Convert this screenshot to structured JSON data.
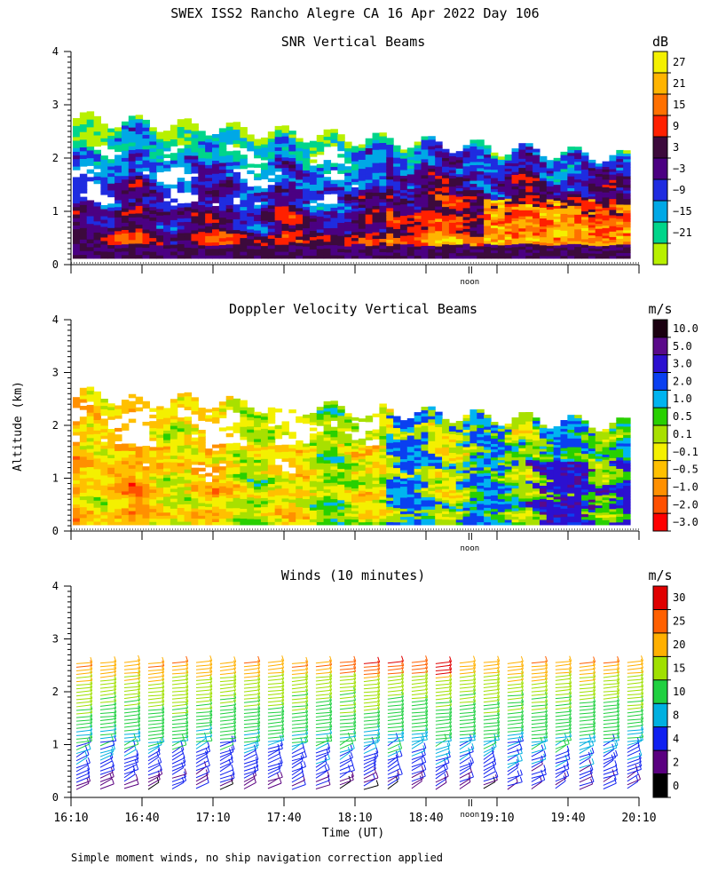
{
  "title": "SWEX ISS2 Rancho Alegre CA  16 Apr 2022 Day 106",
  "ylabel": "Altitude (km)",
  "xlabel": "Time (UT)",
  "footnote": "Simple moment winds, no ship navigation correction applied",
  "noon_label": "noon",
  "x_ticks": [
    "16:10",
    "16:40",
    "17:10",
    "17:40",
    "18:10",
    "18:40",
    "19:10",
    "19:40",
    "20:10"
  ],
  "y_ticks": [
    "0",
    "1",
    "2",
    "3",
    "4"
  ],
  "chart_data": [
    {
      "type": "heatmap",
      "title": "SNR Vertical Beams",
      "unit": "dB",
      "xlabel": "",
      "ylabel": "Altitude (km)",
      "x_range": [
        "16:10",
        "20:10"
      ],
      "ylim": [
        0,
        4
      ],
      "colorbar_ticks": [
        "27",
        "21",
        "15",
        "9",
        "3",
        "−3",
        "−9",
        "−15",
        "−21"
      ],
      "colorbar_colors": [
        "#f4f000",
        "#ffb400",
        "#ff7000",
        "#ff2000",
        "#3c0a3c",
        "#4b0082",
        "#1f2ce0",
        "#00a8e6",
        "#00d58a",
        "#b8f000"
      ],
      "features": {
        "data_top_km": [
          2.7,
          2.5,
          2.3,
          2.2,
          2.1,
          2.0,
          2.0,
          2.1
        ],
        "high_snr_near_time": [
          "19:00",
          "19:50"
        ]
      }
    },
    {
      "type": "heatmap",
      "title": "Doppler Velocity Vertical Beams",
      "unit": "m/s",
      "xlabel": "",
      "ylabel": "Altitude (km)",
      "x_range": [
        "16:10",
        "20:10"
      ],
      "ylim": [
        0,
        4
      ],
      "colorbar_ticks": [
        "10.0",
        "5.0",
        "3.0",
        "2.0",
        "1.0",
        "0.5",
        "0.1",
        "−0.1",
        "−0.5",
        "−1.0",
        "−2.0",
        "−3.0"
      ],
      "colorbar_colors": [
        "#1a0010",
        "#5a0a8a",
        "#2c10d0",
        "#0a40f0",
        "#00b4f0",
        "#28d000",
        "#a8e000",
        "#f4f000",
        "#ffc000",
        "#ff9000",
        "#ff5000",
        "#ff0000"
      ]
    },
    {
      "type": "barbs",
      "title": "Winds (10 minutes)",
      "unit": "m/s",
      "xlabel": "Time (UT)",
      "ylabel": "Altitude (km)",
      "x_range": [
        "16:10",
        "20:10"
      ],
      "ylim": [
        0,
        4
      ],
      "colorbar_ticks": [
        "30",
        "25",
        "20",
        "15",
        "10",
        "8",
        "4",
        "2",
        "0"
      ],
      "colorbar_colors": [
        "#e00000",
        "#ff6000",
        "#ffb000",
        "#a0e000",
        "#20d040",
        "#00b0e0",
        "#1020f0",
        "#5a0080",
        "#000000"
      ],
      "profile_times": [
        "16:10",
        "16:20",
        "16:30",
        "16:40",
        "16:50",
        "17:00",
        "17:10",
        "17:20",
        "17:30",
        "17:40",
        "17:50",
        "18:00",
        "18:10",
        "18:20",
        "18:30",
        "18:40",
        "18:50",
        "19:00",
        "19:10",
        "19:20",
        "19:30",
        "19:40",
        "19:50",
        "20:00"
      ],
      "speed_profile_mps": [
        {
          "alt_km": 0.2,
          "speed": 2
        },
        {
          "alt_km": 0.6,
          "speed": 4
        },
        {
          "alt_km": 1.0,
          "speed": 8
        },
        {
          "alt_km": 1.4,
          "speed": 10
        },
        {
          "alt_km": 1.8,
          "speed": 13
        },
        {
          "alt_km": 2.2,
          "speed": 17
        },
        {
          "alt_km": 2.6,
          "speed": 21
        },
        {
          "alt_km": 2.9,
          "speed": 25
        }
      ]
    }
  ]
}
